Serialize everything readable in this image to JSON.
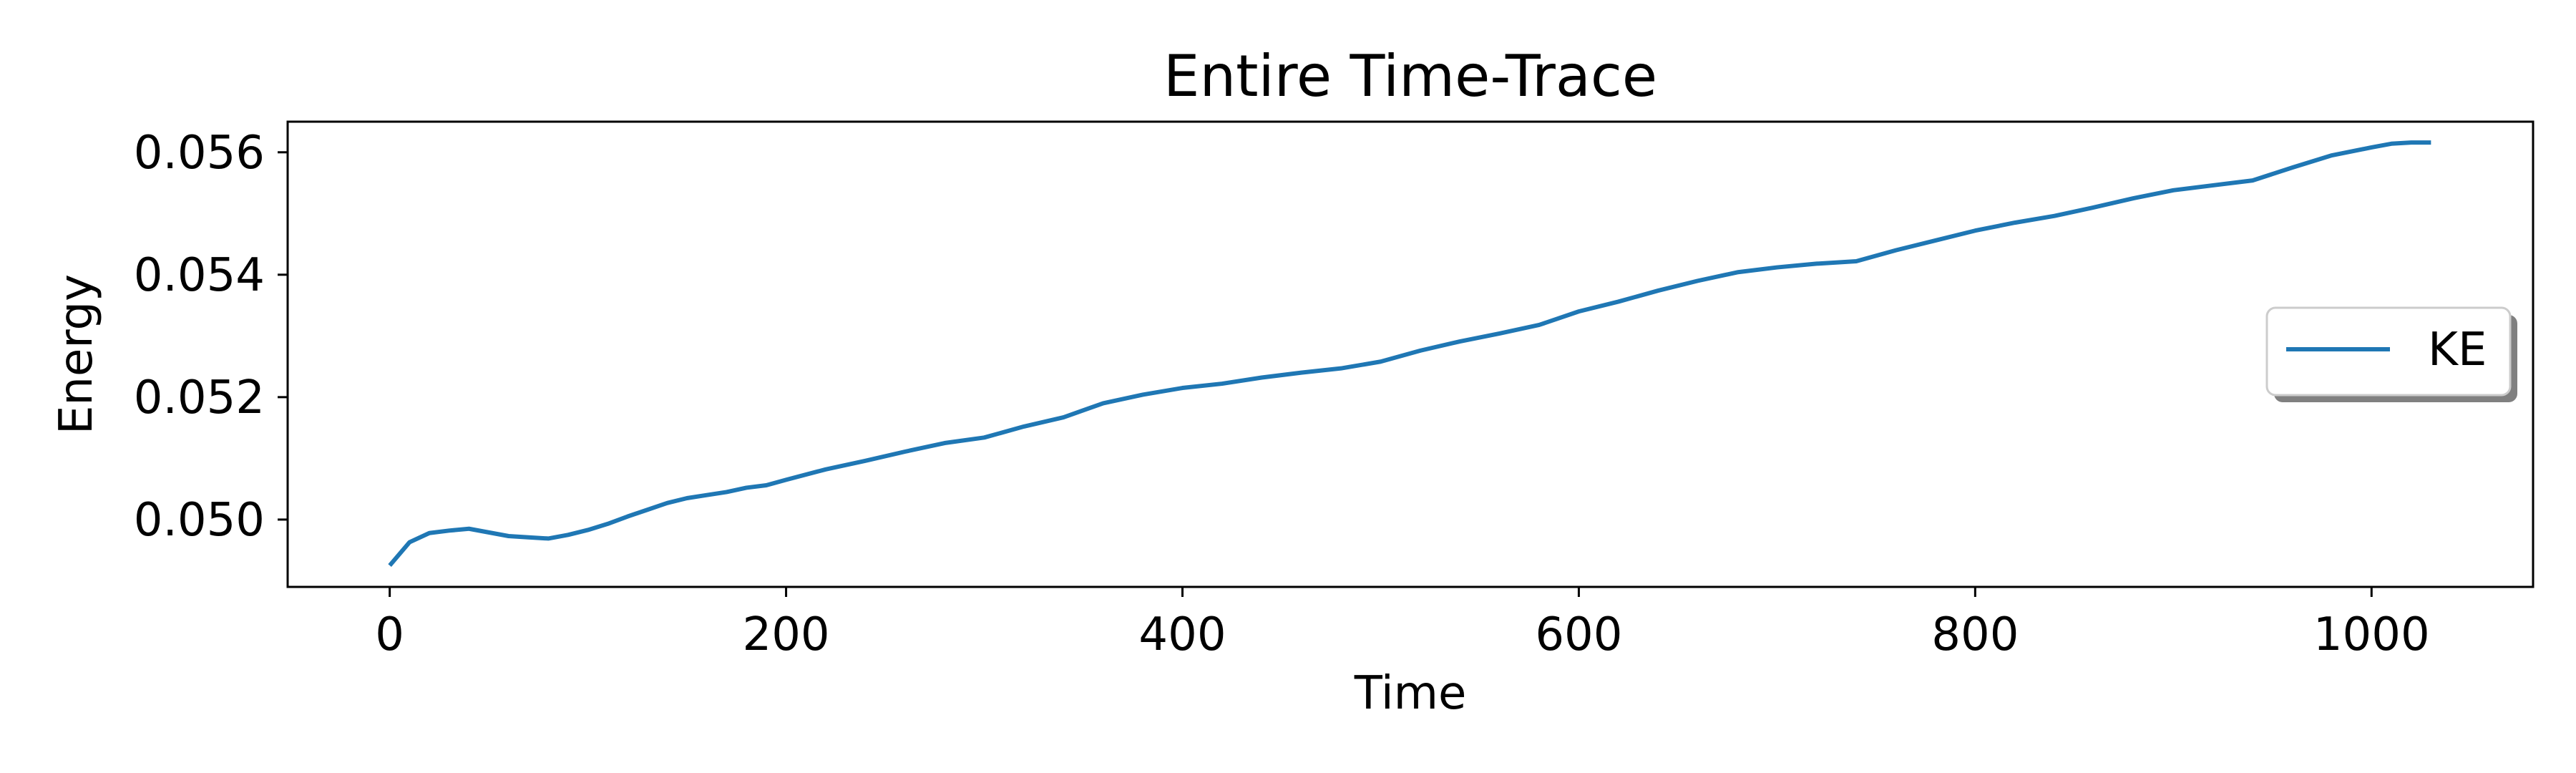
{
  "chart_data": {
    "type": "line",
    "title": "Entire Time-Trace",
    "xlabel": "Time",
    "ylabel": "Energy",
    "xlim": [
      -51.5,
      1081.5
    ],
    "ylim": [
      0.0489,
      0.0565
    ],
    "xticks": [
      0,
      200,
      400,
      600,
      800,
      1000
    ],
    "xtick_labels": [
      "0",
      "200",
      "400",
      "600",
      "800",
      "1000"
    ],
    "yticks": [
      0.05,
      0.052,
      0.054,
      0.056
    ],
    "ytick_labels": [
      "0.050",
      "0.052",
      "0.054",
      "0.056"
    ],
    "grid": false,
    "legend_position": "center-right",
    "series": [
      {
        "name": "KE",
        "color": "#1f77b4",
        "x": [
          0,
          10,
          20,
          30,
          40,
          50,
          60,
          70,
          80,
          90,
          100,
          110,
          120,
          130,
          140,
          150,
          160,
          170,
          180,
          190,
          200,
          220,
          240,
          260,
          280,
          300,
          320,
          340,
          360,
          380,
          400,
          420,
          440,
          460,
          480,
          500,
          520,
          540,
          560,
          580,
          600,
          620,
          640,
          660,
          680,
          700,
          720,
          740,
          760,
          780,
          800,
          820,
          840,
          860,
          880,
          900,
          920,
          940,
          960,
          980,
          1000,
          1010,
          1020,
          1030
        ],
        "values": [
          0.04925,
          0.04963,
          0.04978,
          0.04982,
          0.04985,
          0.04979,
          0.04973,
          0.04971,
          0.04969,
          0.04975,
          0.04983,
          0.04993,
          0.05005,
          0.05016,
          0.05027,
          0.05035,
          0.0504,
          0.05045,
          0.05052,
          0.05056,
          0.05065,
          0.05082,
          0.05096,
          0.05111,
          0.05125,
          0.05134,
          0.05152,
          0.05167,
          0.0519,
          0.05204,
          0.05215,
          0.05222,
          0.05232,
          0.0524,
          0.05247,
          0.05258,
          0.05276,
          0.05291,
          0.05304,
          0.05318,
          0.0534,
          0.05356,
          0.05374,
          0.0539,
          0.05404,
          0.05412,
          0.05418,
          0.05422,
          0.0544,
          0.05456,
          0.05472,
          0.05485,
          0.05496,
          0.0551,
          0.05525,
          0.05538,
          0.05546,
          0.05554,
          0.05575,
          0.05595,
          0.05608,
          0.05614,
          0.05616,
          0.05616
        ]
      }
    ]
  }
}
